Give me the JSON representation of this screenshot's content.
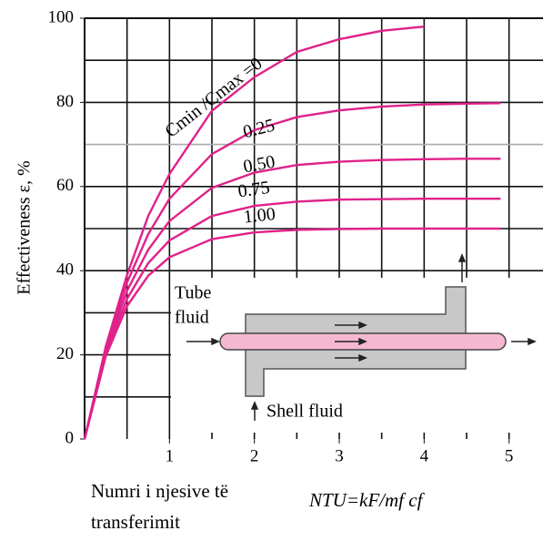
{
  "chart_data": {
    "type": "line",
    "y_label": "Effectiveness ε, %",
    "x_label": "Numri i njesive të transferimit",
    "formula": "NTU=kF/mf cf",
    "x": [
      0,
      0.25,
      0.5,
      0.75,
      1,
      1.5,
      2,
      2.5,
      3,
      3.5,
      4,
      4.5,
      4.9
    ],
    "series": [
      {
        "name": "Cmin /Cmax =0",
        "color": "#e0218a",
        "values": [
          0,
          22,
          39,
          53,
          63,
          78,
          86,
          92,
          95,
          97,
          98,
          null,
          null
        ]
      },
      {
        "name": "0.25",
        "color": "#e0218a",
        "values": [
          0,
          21.4,
          37.2,
          48.7,
          57.1,
          67.7,
          73.4,
          76.5,
          78.1,
          79,
          79.5,
          79.7,
          79.8
        ]
      },
      {
        "name": "0.50",
        "color": "#e0218a",
        "values": [
          0,
          20.9,
          35.2,
          45,
          51.8,
          59.7,
          63.3,
          65.1,
          65.9,
          66.3,
          66.5,
          66.6,
          66.6
        ]
      },
      {
        "name": "0.75",
        "color": "#e0218a",
        "values": [
          0,
          20.2,
          33.3,
          41.8,
          47.2,
          53,
          55.4,
          56.4,
          56.9,
          57,
          57.1,
          57.1,
          57.1
        ]
      },
      {
        "name": "1.00",
        "color": "#e0218a",
        "values": [
          0,
          19.7,
          31.6,
          38.8,
          43.2,
          47.5,
          49.1,
          49.7,
          49.9,
          50,
          50,
          50,
          50
        ]
      }
    ],
    "xlim": [
      0,
      5.4
    ],
    "ylim": [
      0,
      100
    ],
    "xticks": [
      1,
      2,
      3,
      4,
      5
    ],
    "yticks": [
      0,
      20,
      40,
      60,
      80,
      100
    ],
    "xgrid": [
      0.5,
      1,
      1.5,
      2,
      2.5,
      3,
      3.5,
      4,
      4.5,
      5
    ],
    "ygrid": [
      10,
      20,
      30,
      40,
      50,
      60,
      70,
      80,
      90
    ],
    "grid": true
  },
  "inset": {
    "tube_label_lines": [
      "Tube",
      "fluid"
    ],
    "shell_label": "Shell fluid"
  }
}
